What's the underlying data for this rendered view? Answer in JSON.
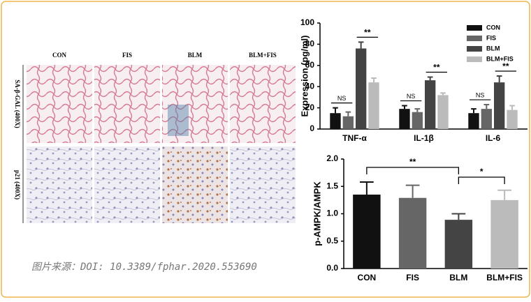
{
  "figure": {
    "columns": [
      "CON",
      "FIS",
      "BLM",
      "BLM+FIS"
    ],
    "rows": [
      "SA-β-GAL (400X)",
      "p21 (400X)"
    ],
    "caption": "图片来源：DOI: 10.3389/fphar.2020.553690"
  },
  "chart_data": [
    {
      "type": "bar",
      "y_label": "Expression (pg/ml)",
      "categories": [
        "TNF-α",
        "IL-1β",
        "IL-6"
      ],
      "series": [
        {
          "name": "CON",
          "color": "#111111",
          "values": [
            15,
            19,
            15
          ],
          "errors": [
            5,
            3,
            4
          ]
        },
        {
          "name": "FIS",
          "color": "#666666",
          "values": [
            12,
            16,
            19
          ],
          "errors": [
            4,
            3,
            4
          ]
        },
        {
          "name": "BLM",
          "color": "#444444",
          "values": [
            76,
            46,
            44
          ],
          "errors": [
            6,
            3,
            6
          ]
        },
        {
          "name": "BLM+FIS",
          "color": "#bbbbbb",
          "values": [
            44,
            32,
            18
          ],
          "errors": [
            4,
            2,
            4
          ]
        }
      ],
      "annotations": [
        "NS",
        "**",
        "NS",
        "**",
        "NS",
        "**"
      ],
      "ylim": [
        0,
        100
      ],
      "yticks": [
        0,
        20,
        40,
        60,
        80,
        100
      ],
      "legend": "upper right"
    },
    {
      "type": "bar",
      "y_label": "p-AMPK/AMPK",
      "categories": [
        "CON",
        "FIS",
        "BLM",
        "BLM+FIS"
      ],
      "values": [
        1.35,
        1.29,
        0.89,
        1.25
      ],
      "errors": [
        0.23,
        0.23,
        0.11,
        0.18
      ],
      "colors": [
        "#111111",
        "#666666",
        "#444444",
        "#bbbbbb"
      ],
      "annotations": [
        "**",
        "*"
      ],
      "ylim": [
        0,
        2
      ],
      "yticks": [
        {
          "value": 0,
          "label": "0.0"
        },
        {
          "value": 0.5,
          "label": "0.5"
        },
        {
          "value": 1,
          "label": "1.0"
        },
        {
          "value": 1.5,
          "label": "1.5"
        },
        {
          "value": 2,
          "label": "2.0"
        }
      ]
    }
  ]
}
